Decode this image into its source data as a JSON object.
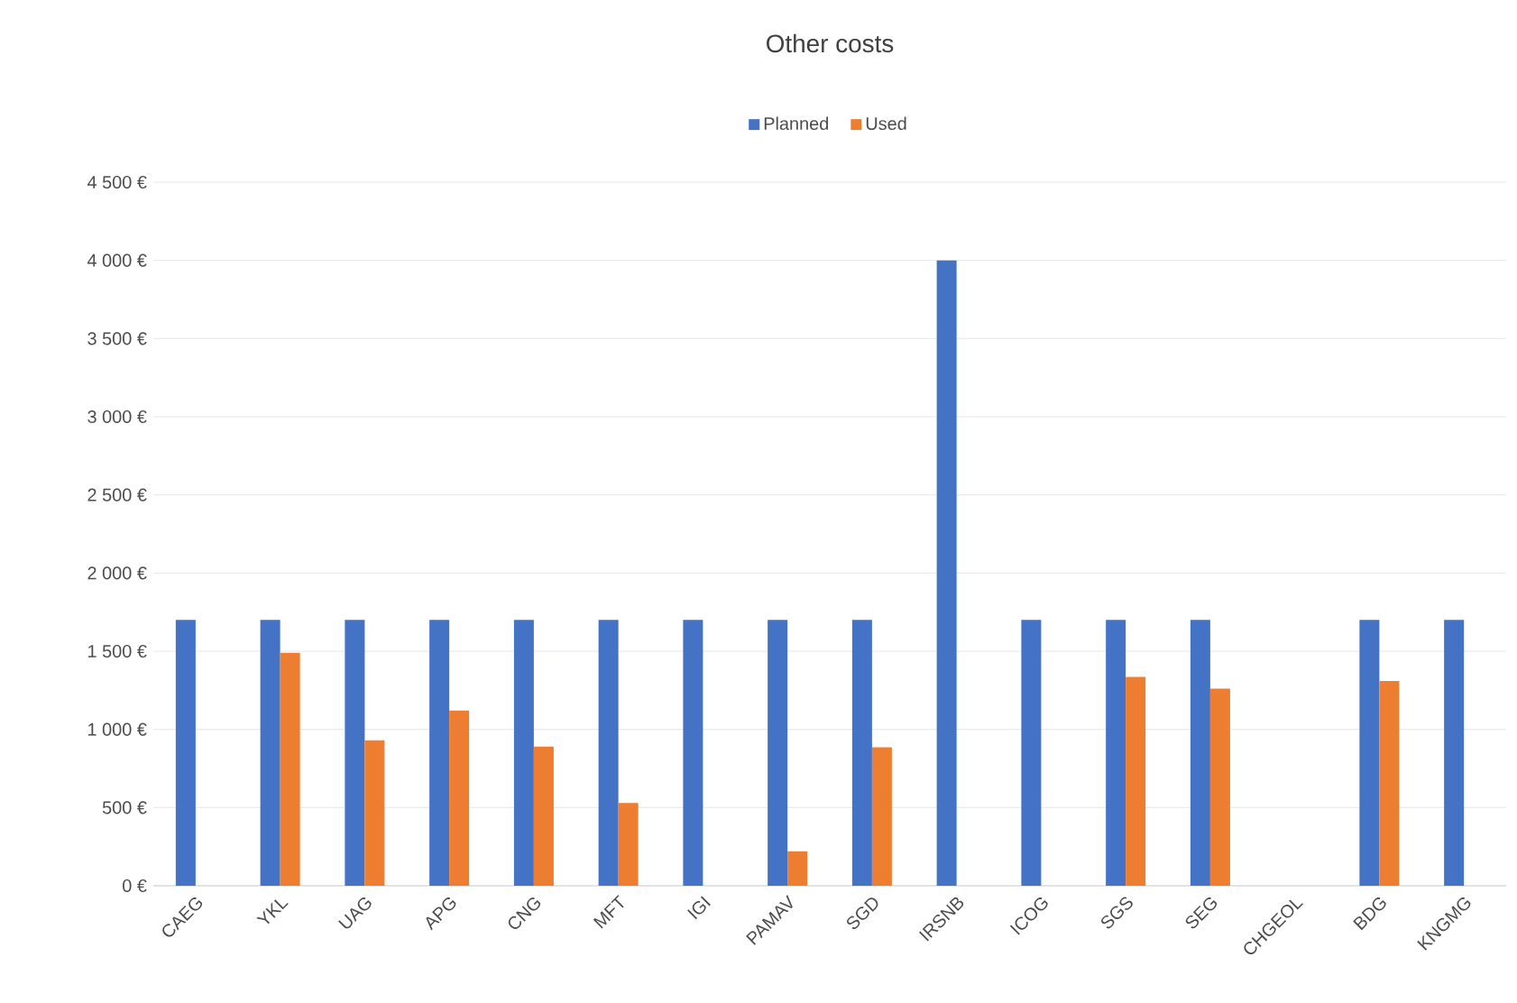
{
  "chart_data": {
    "type": "bar",
    "title": "Other costs",
    "categories": [
      "CAEG",
      "YKL",
      "UAG",
      "APG",
      "CNG",
      "MFT",
      "IGI",
      "PAMAV",
      "SGD",
      "IRSNB",
      "ICOG",
      "SGS",
      "SEG",
      "CHGEOL",
      "BDG",
      "KNGMG"
    ],
    "series": [
      {
        "name": "Planned",
        "color": "#4472c4",
        "values": [
          1700,
          1700,
          1700,
          1700,
          1700,
          1700,
          1700,
          1700,
          1700,
          4000,
          1700,
          1700,
          1700,
          null,
          1700,
          1700
        ]
      },
      {
        "name": "Used",
        "color": "#ed7d31",
        "values": [
          null,
          1490,
          930,
          1120,
          890,
          530,
          null,
          220,
          885,
          null,
          null,
          1335,
          1260,
          null,
          1310,
          null
        ]
      }
    ],
    "ylim": [
      0,
      4500
    ],
    "yticks": [
      {
        "value": 0,
        "label": "0 €"
      },
      {
        "value": 500,
        "label": "500 €"
      },
      {
        "value": 1000,
        "label": "1 000 €"
      },
      {
        "value": 1500,
        "label": "1 500 €"
      },
      {
        "value": 2000,
        "label": "2 000 €"
      },
      {
        "value": 2500,
        "label": "2 500 €"
      },
      {
        "value": 3000,
        "label": "3 000 €"
      },
      {
        "value": 3500,
        "label": "3 500 €"
      },
      {
        "value": 4000,
        "label": "4 000 €"
      },
      {
        "value": 4500,
        "label": "4 500 €"
      }
    ],
    "grid": "y",
    "legend": "top"
  }
}
